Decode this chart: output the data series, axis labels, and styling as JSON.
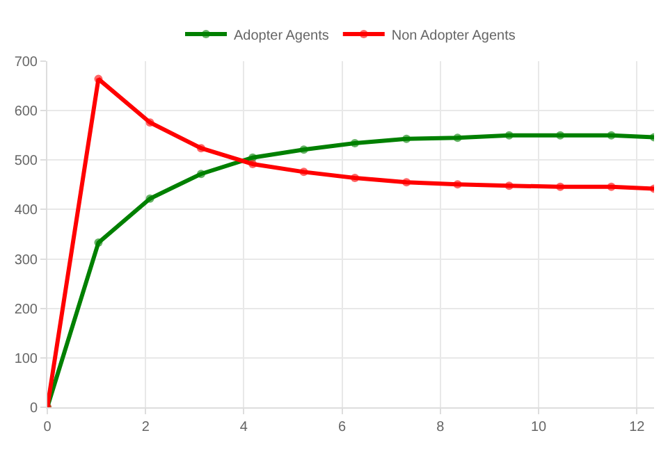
{
  "chart_data": {
    "type": "line",
    "x": [
      0,
      1.04,
      2.09,
      3.13,
      4.18,
      5.22,
      6.26,
      7.31,
      8.35,
      9.4,
      10.44,
      11.48,
      12.35
    ],
    "series": [
      {
        "name": "Adopter Agents",
        "color": "#008000",
        "values": [
          0,
          333,
          422,
          472,
          505,
          521,
          534,
          543,
          545,
          550,
          550,
          550,
          546
        ]
      },
      {
        "name": "Non Adopter Agents",
        "color": "#ff0000",
        "values": [
          0,
          664,
          576,
          524,
          492,
          476,
          464,
          455,
          451,
          448,
          446,
          446,
          442
        ]
      }
    ],
    "xlim": [
      0,
      12.35
    ],
    "xticks": [
      0,
      2,
      4,
      6,
      8,
      10,
      12
    ],
    "ylim": [
      0,
      700
    ],
    "yticks": [
      0,
      100,
      200,
      300,
      400,
      500,
      600,
      700
    ],
    "grid": true,
    "legend": "top",
    "marker": "circle",
    "line_style": "solid"
  }
}
